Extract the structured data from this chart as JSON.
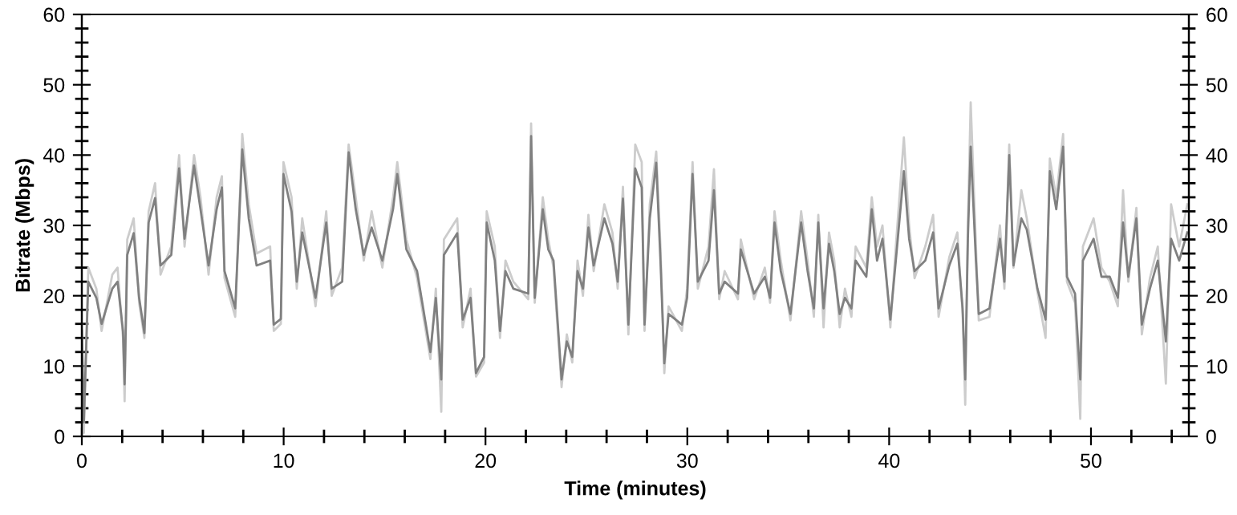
{
  "chart_data": {
    "type": "line",
    "xlabel": "Time (minutes)",
    "ylabel": "Bitrate (Mbps)",
    "x": [
      0,
      0.1,
      0.32,
      0.72,
      0.98,
      1.51,
      1.77,
      2.04,
      2.12,
      2.25,
      2.57,
      2.84,
      3.1,
      3.31,
      3.63,
      3.9,
      4.43,
      4.82,
      5.09,
      5.56,
      5.88,
      6.28,
      6.68,
      6.94,
      7.07,
      7.6,
      7.95,
      8.27,
      8.66,
      9.33,
      9.51,
      9.86,
      9.99,
      10.39,
      10.65,
      10.92,
      11.58,
      12.11,
      12.38,
      12.9,
      13.22,
      13.57,
      13.97,
      14.36,
      14.89,
      15.42,
      15.63,
      16.08,
      16.61,
      17.27,
      17.54,
      17.81,
      17.94,
      18.6,
      18.87,
      19.26,
      19.53,
      19.93,
      20.06,
      20.46,
      20.72,
      20.99,
      21.38,
      22.12,
      22.26,
      22.44,
      22.84,
      23.11,
      23.37,
      23.77,
      24.03,
      24.3,
      24.56,
      24.83,
      25.1,
      25.36,
      25.89,
      26.29,
      26.55,
      26.81,
      27.08,
      27.42,
      27.74,
      27.88,
      28.14,
      28.46,
      28.67,
      28.86,
      29.07,
      29.73,
      29.99,
      30.26,
      30.52,
      31.05,
      31.32,
      31.58,
      31.85,
      32.51,
      32.65,
      33.31,
      33.84,
      34.1,
      34.32,
      34.63,
      35.11,
      35.64,
      35.96,
      36.27,
      36.49,
      36.75,
      37.02,
      37.28,
      37.55,
      37.81,
      38.13,
      38.34,
      38.87,
      39.14,
      39.4,
      39.67,
      40.06,
      40.33,
      40.73,
      40.99,
      41.26,
      41.79,
      42.18,
      42.45,
      42.98,
      43.38,
      43.64,
      43.77,
      43.9,
      44.04,
      44.3,
      44.44,
      44.97,
      45.49,
      45.71,
      45.95,
      46.16,
      46.55,
      46.82,
      47.35,
      47.75,
      47.96,
      48.28,
      48.62,
      48.81,
      49.21,
      49.47,
      49.6,
      50.13,
      50.52,
      50.93,
      51.33,
      51.59,
      51.85,
      52.25,
      52.52,
      52.92,
      53.31,
      53.71,
      53.97,
      54.37,
      54.77
    ],
    "series": [
      {
        "color": "#cccccc",
        "values": [
          16,
          0.5,
          24,
          21,
          15,
          23,
          24,
          14,
          5,
          28,
          31,
          19,
          14,
          32,
          36,
          23,
          27,
          40,
          27,
          40,
          34,
          23,
          34,
          37,
          22.5,
          17,
          43,
          33,
          26,
          27,
          15,
          16,
          39,
          34,
          21,
          31,
          18.5,
          32,
          20,
          24,
          41.5,
          34,
          25,
          32,
          24,
          34,
          39,
          28,
          22.5,
          11,
          21,
          3.5,
          28,
          31,
          15.5,
          21,
          8.5,
          10.5,
          32,
          27,
          14,
          25,
          22,
          19.5,
          44.5,
          19,
          34,
          28,
          24,
          7,
          14.5,
          10.5,
          25,
          20,
          31.5,
          23.5,
          33,
          29,
          21,
          35.5,
          14.5,
          41.5,
          39,
          15,
          33,
          40.5,
          27,
          9,
          18.5,
          15,
          21,
          39,
          21,
          27,
          38,
          19.5,
          23.5,
          19.5,
          28,
          19.5,
          24,
          19,
          32,
          25,
          16.5,
          32,
          25,
          17,
          31.5,
          15.5,
          29,
          25,
          15.5,
          21,
          17,
          27,
          24,
          34,
          27,
          30,
          15.5,
          27,
          42.5,
          30,
          22.5,
          27,
          31.5,
          17,
          25.5,
          29,
          17.5,
          4.5,
          30,
          47.5,
          27,
          16.5,
          17,
          30,
          21,
          41.5,
          24,
          35,
          31,
          20.5,
          14,
          39.5,
          34,
          43,
          22,
          19,
          2.5,
          27,
          31,
          24,
          22,
          18.5,
          35,
          22,
          32.5,
          14.5,
          22.5,
          27,
          7.5,
          33,
          27,
          33
        ]
      },
      {
        "color": "#808080",
        "values": [
          15,
          2,
          22,
          19.7,
          16,
          21,
          22,
          15,
          7.4,
          25.8,
          28.9,
          19.7,
          14.7,
          30.4,
          33.9,
          24.3,
          25.8,
          38.1,
          28.1,
          38.5,
          32.3,
          24.3,
          32.3,
          35.4,
          23.5,
          18.2,
          40.8,
          31,
          24.3,
          25,
          15.9,
          16.7,
          37.3,
          32,
          22,
          29,
          19.7,
          30.4,
          21,
          22,
          40.4,
          32.3,
          25.8,
          29.7,
          25,
          32.3,
          37.3,
          26.6,
          23.5,
          12,
          19.7,
          8.1,
          25.8,
          28.9,
          16.6,
          19.7,
          9,
          11.3,
          30.4,
          25,
          15,
          23.5,
          21,
          20.3,
          42.7,
          19.7,
          32.3,
          26.6,
          25,
          8.1,
          13.5,
          11.3,
          23.5,
          21,
          29.7,
          24.3,
          31,
          27.4,
          22,
          33.8,
          15.9,
          38.1,
          35.4,
          15.9,
          31,
          38.9,
          25,
          10.4,
          17.4,
          15.9,
          19.7,
          37.3,
          22,
          25,
          35,
          20.3,
          22,
          20.3,
          26.6,
          20.3,
          22.7,
          19.7,
          30.4,
          23.5,
          17.4,
          30.4,
          23.5,
          18.2,
          30.4,
          18.2,
          27.4,
          23.5,
          17.4,
          19.7,
          18.2,
          25,
          22.7,
          32.3,
          25,
          28.1,
          16.6,
          25,
          37.7,
          28.1,
          23.5,
          25,
          29,
          18.2,
          24.3,
          27.4,
          18.2,
          8.1,
          28.1,
          41.2,
          25,
          17.4,
          18.2,
          28.1,
          22,
          40,
          24.3,
          31,
          29.4,
          21,
          16.6,
          37.7,
          32.3,
          41.2,
          22.7,
          20.3,
          8.1,
          25,
          28.1,
          22.7,
          22.7,
          19.7,
          30.4,
          22.7,
          31,
          15.9,
          21,
          25,
          13.5,
          28.1,
          25,
          29
        ]
      }
    ],
    "xlim": [
      0,
      54.85
    ],
    "xticks": [
      0,
      {
        "value": 2,
        "label": null
      },
      {
        "value": 4,
        "label": null
      },
      {
        "value": 6,
        "label": null
      },
      {
        "value": 8,
        "label": null
      },
      10,
      {
        "value": 12,
        "label": null
      },
      {
        "value": 14,
        "label": null
      },
      {
        "value": 16,
        "label": null
      },
      {
        "value": 18,
        "label": null
      },
      20,
      {
        "value": 22,
        "label": null
      },
      {
        "value": 24,
        "label": null
      },
      {
        "value": 26,
        "label": null
      },
      {
        "value": 28,
        "label": null
      },
      30,
      {
        "value": 32,
        "label": null
      },
      {
        "value": 34,
        "label": null
      },
      {
        "value": 36,
        "label": null
      },
      {
        "value": 38,
        "label": null
      },
      40,
      {
        "value": 42,
        "label": null
      },
      {
        "value": 44,
        "label": null
      },
      {
        "value": 46,
        "label": null
      },
      {
        "value": 48,
        "label": null
      },
      50,
      {
        "value": 52,
        "label": null
      },
      {
        "value": 54,
        "label": null
      }
    ],
    "ylim": [
      0,
      60
    ],
    "yticks": [
      0,
      {
        "value": 2,
        "label": null
      },
      {
        "value": 4,
        "label": null
      },
      {
        "value": 6,
        "label": null
      },
      {
        "value": 8,
        "label": null
      },
      10,
      {
        "value": 12,
        "label": null
      },
      {
        "value": 14,
        "label": null
      },
      {
        "value": 16,
        "label": null
      },
      {
        "value": 18,
        "label": null
      },
      20,
      {
        "value": 22,
        "label": null
      },
      {
        "value": 24,
        "label": null
      },
      {
        "value": 26,
        "label": null
      },
      {
        "value": 28,
        "label": null
      },
      30,
      {
        "value": 32,
        "label": null
      },
      {
        "value": 34,
        "label": null
      },
      {
        "value": 36,
        "label": null
      },
      {
        "value": 38,
        "label": null
      },
      40,
      {
        "value": 42,
        "label": null
      },
      {
        "value": 44,
        "label": null
      },
      {
        "value": 46,
        "label": null
      },
      {
        "value": 48,
        "label": null
      },
      50,
      {
        "value": 52,
        "label": null
      },
      {
        "value": 54,
        "label": null
      },
      {
        "value": 56,
        "label": null
      },
      {
        "value": 58,
        "label": null
      },
      60
    ],
    "y2lim": [
      0,
      60
    ],
    "y2ticks": [
      0,
      {
        "value": 2,
        "label": null
      },
      {
        "value": 4,
        "label": null
      },
      {
        "value": 6,
        "label": null
      },
      {
        "value": 8,
        "label": null
      },
      10,
      {
        "value": 12,
        "label": null
      },
      {
        "value": 14,
        "label": null
      },
      {
        "value": 16,
        "label": null
      },
      {
        "value": 18,
        "label": null
      },
      20,
      {
        "value": 22,
        "label": null
      },
      {
        "value": 24,
        "label": null
      },
      {
        "value": 26,
        "label": null
      },
      {
        "value": 28,
        "label": null
      },
      30,
      {
        "value": 32,
        "label": null
      },
      {
        "value": 34,
        "label": null
      },
      {
        "value": 36,
        "label": null
      },
      {
        "value": 38,
        "label": null
      },
      40,
      {
        "value": 42,
        "label": null
      },
      {
        "value": 44,
        "label": null
      },
      {
        "value": 46,
        "label": null
      },
      {
        "value": 48,
        "label": null
      },
      50,
      {
        "value": 52,
        "label": null
      },
      {
        "value": 54,
        "label": null
      },
      {
        "value": 56,
        "label": null
      },
      {
        "value": 58,
        "label": null
      },
      60
    ],
    "grid": false,
    "marker": "none",
    "line_style": "solid"
  }
}
